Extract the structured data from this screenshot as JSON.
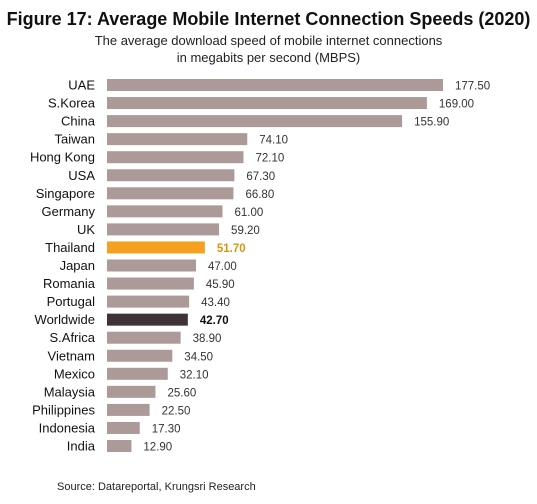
{
  "colors": {
    "default_bar": "#ab9a98",
    "highlight_thailand": "#f5a01f",
    "highlight_worldwide": "#3e3336",
    "thailand_label": "#d9940f"
  },
  "chart_data": {
    "type": "bar",
    "orientation": "horizontal",
    "title": "Figure 17: Average Mobile Internet Connection Speeds (2020)",
    "subtitle_lines": [
      "The average download speed of mobile internet connections",
      "in megabits per second (MBPS)"
    ],
    "categories": [
      "UAE",
      "S.Korea",
      "China",
      "Taiwan",
      "Hong Kong",
      "USA",
      "Singapore",
      "Germany",
      "UK",
      "Thailand",
      "Japan",
      "Romania",
      "Portugal",
      "Worldwide",
      "S.Africa",
      "Vietnam",
      "Mexico",
      "Malaysia",
      "Philippines",
      "Indonesia",
      "India"
    ],
    "values": [
      177.5,
      169.0,
      155.9,
      74.1,
      72.1,
      67.3,
      66.8,
      61.0,
      59.2,
      51.7,
      47.0,
      45.9,
      43.4,
      42.7,
      38.9,
      34.5,
      32.1,
      25.6,
      22.5,
      17.3,
      12.9
    ],
    "value_labels": [
      "177.50",
      "169.00",
      "155.90",
      "74.10",
      "72.10",
      "67.30",
      "66.80",
      "61.00",
      "59.20",
      "51.70",
      "47.00",
      "45.90",
      "43.40",
      "42.70",
      "38.90",
      "34.50",
      "32.10",
      "25.60",
      "22.50",
      "17.30",
      "12.90"
    ],
    "highlight": {
      "Thailand": "#f5a01f",
      "Worldwide": "#3e3336"
    },
    "xlim": [
      0,
      177.5
    ],
    "grid": false,
    "legend": "none"
  },
  "source": "Source: Datareportal, Krungsri Research"
}
